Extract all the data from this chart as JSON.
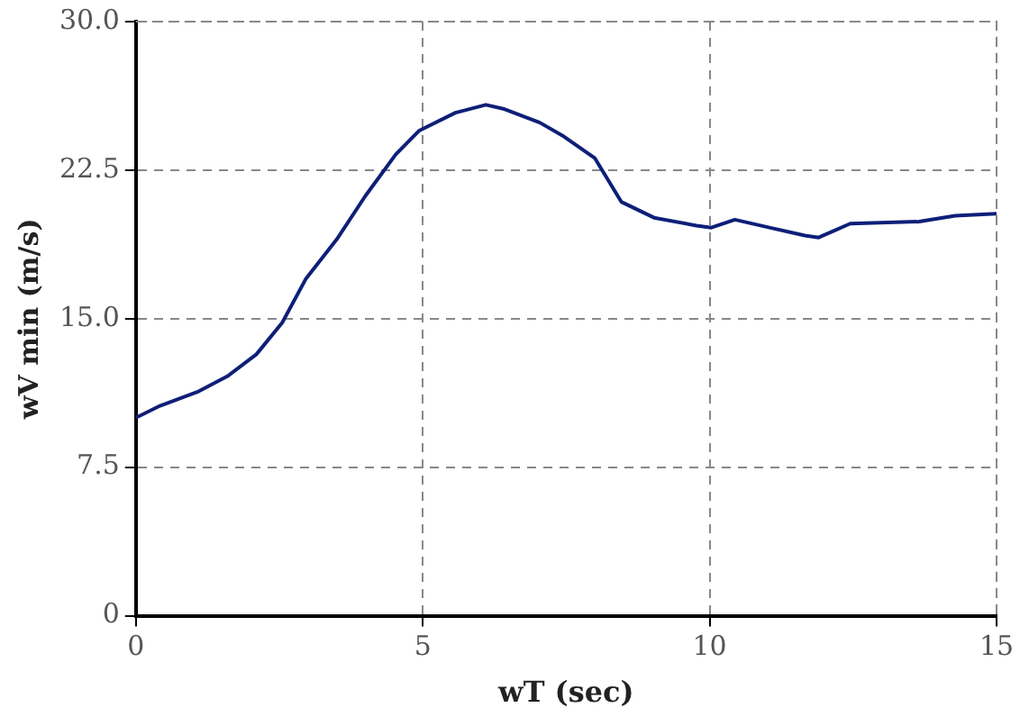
{
  "chart_data": {
    "type": "line",
    "xlabel": "wT (sec)",
    "ylabel": "wV min (m/s)",
    "x": [
      0,
      0.42,
      1.07,
      1.6,
      2.1,
      2.55,
      2.96,
      3.5,
      4.0,
      4.53,
      4.94,
      5.57,
      6.1,
      6.4,
      7.04,
      7.46,
      8.0,
      8.46,
      9.03,
      9.77,
      10.03,
      10.44,
      11.04,
      11.66,
      11.9,
      12.45,
      13.65,
      14.28,
      15
    ],
    "series": [
      {
        "color": "#0d1f78",
        "values": [
          10.0,
          10.6,
          11.3,
          12.1,
          13.2,
          14.8,
          17.0,
          19.0,
          21.2,
          23.3,
          24.5,
          25.4,
          25.8,
          25.6,
          24.9,
          24.2,
          23.1,
          20.9,
          20.1,
          19.7,
          19.6,
          20.0,
          19.6,
          19.2,
          19.1,
          19.8,
          19.9,
          20.2,
          20.3
        ]
      }
    ],
    "xlim": [
      0,
      15
    ],
    "xticks": [
      0,
      5,
      10,
      15
    ],
    "ylim": [
      0,
      30
    ],
    "yticks": [
      {
        "value": 0,
        "label": "0"
      },
      {
        "value": 7.5,
        "label": "7.5"
      },
      {
        "value": 15,
        "label": "15.0"
      },
      {
        "value": 22.5,
        "label": "22.5"
      },
      {
        "value": 30,
        "label": "30.0"
      }
    ],
    "grid": true,
    "legend": false,
    "marker": "none",
    "line_style": "solid"
  }
}
